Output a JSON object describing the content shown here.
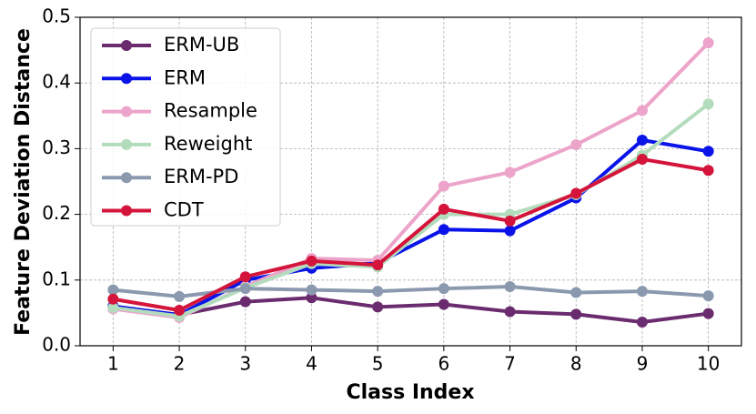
{
  "chart_data": {
    "type": "line",
    "x_label": "Class Index",
    "y_label": "Feature Deviation Distance",
    "x": [
      1,
      2,
      3,
      4,
      5,
      6,
      7,
      8,
      9,
      10
    ],
    "xlim": [
      0.5,
      10.5
    ],
    "xticks": [
      1,
      2,
      3,
      4,
      5,
      6,
      7,
      8,
      9,
      10
    ],
    "ylim": [
      0,
      0.5
    ],
    "yticks": [
      {
        "value": 0,
        "label": "0.0"
      },
      0.1,
      0.2,
      0.3,
      0.4,
      0.5
    ],
    "grid": true,
    "legend": "upper left",
    "series": [
      {
        "name": "ERM-UB",
        "color": "#6a2c6e",
        "values": [
          0.06,
          0.047,
          0.067,
          0.073,
          0.059,
          0.063,
          0.052,
          0.048,
          0.036,
          0.049
        ]
      },
      {
        "name": "ERM",
        "color": "#0a14e8",
        "values": [
          0.06,
          0.047,
          0.1,
          0.118,
          0.126,
          0.177,
          0.175,
          0.225,
          0.313,
          0.296
        ]
      },
      {
        "name": "Resample",
        "color": "#eca4cb",
        "values": [
          0.056,
          0.043,
          0.09,
          0.133,
          0.13,
          0.243,
          0.264,
          0.306,
          0.358,
          0.461
        ]
      },
      {
        "name": "Reweight",
        "color": "#b3dcbd",
        "values": [
          0.058,
          0.045,
          0.088,
          0.125,
          0.12,
          0.2,
          0.2,
          0.23,
          0.29,
          0.368
        ]
      },
      {
        "name": "ERM-PD",
        "color": "#8b99af",
        "values": [
          0.085,
          0.075,
          0.087,
          0.085,
          0.083,
          0.087,
          0.09,
          0.081,
          0.083,
          0.076
        ]
      },
      {
        "name": "CDT",
        "color": "#d4143a",
        "values": [
          0.071,
          0.054,
          0.105,
          0.129,
          0.123,
          0.208,
          0.19,
          0.232,
          0.284,
          0.267
        ]
      }
    ]
  }
}
